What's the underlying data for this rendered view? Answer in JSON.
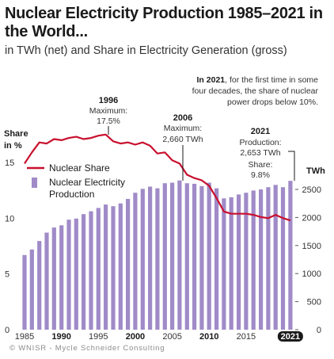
{
  "header": {
    "title": "Nuclear Electricity Production 1985–2021 in the World...",
    "subtitle": "in TWh (net) and Share in Electricity Generation (gross)"
  },
  "footer": {
    "credit": "© WNISR - Mycle Schneider Consulting"
  },
  "colors": {
    "bar": "#a08bc8",
    "line": "#c8102e",
    "text": "#1a1a1a",
    "axis": "#555555",
    "tickBg": "#1a1a1a"
  },
  "chart_data": {
    "type": "bar",
    "title": "Nuclear Electricity Production 1985–2021 in the World...",
    "subtitle": "in TWh (net) and Share in Electricity Generation (gross)",
    "x": [
      1985,
      1986,
      1987,
      1988,
      1989,
      1990,
      1991,
      1992,
      1993,
      1994,
      1995,
      1996,
      1997,
      1998,
      1999,
      2000,
      2001,
      2002,
      2003,
      2004,
      2005,
      2006,
      2007,
      2008,
      2009,
      2010,
      2011,
      2012,
      2013,
      2014,
      2015,
      2016,
      2017,
      2018,
      2019,
      2020,
      2021
    ],
    "xticks": {
      "labels": [
        "1985",
        "1990",
        "1995",
        "2000",
        "2005",
        "2010",
        "2015",
        "2021"
      ],
      "values": [
        1985,
        1990,
        1995,
        2000,
        2005,
        2010,
        2015,
        2021
      ],
      "emphasized": [
        "1990",
        "2000",
        "2010",
        "2021"
      ]
    },
    "series": [
      {
        "name": "Nuclear Electricity Production",
        "type": "bar",
        "axis": "right",
        "values": [
          1330,
          1430,
          1580,
          1730,
          1820,
          1860,
          1960,
          1980,
          2060,
          2110,
          2170,
          2230,
          2200,
          2250,
          2330,
          2440,
          2510,
          2550,
          2520,
          2610,
          2620,
          2660,
          2610,
          2600,
          2560,
          2620,
          2520,
          2340,
          2360,
          2410,
          2440,
          2480,
          2500,
          2540,
          2580,
          2540,
          2653
        ]
      },
      {
        "name": "Nuclear Share",
        "type": "line",
        "axis": "left",
        "values": [
          14.9,
          15.9,
          16.8,
          16.7,
          17.1,
          17.0,
          17.2,
          17.3,
          17.1,
          17.2,
          17.4,
          17.5,
          16.9,
          16.7,
          16.8,
          16.6,
          16.8,
          16.5,
          15.8,
          15.9,
          15.2,
          14.9,
          13.9,
          13.6,
          13.4,
          12.9,
          11.8,
          10.6,
          10.4,
          10.4,
          10.4,
          10.3,
          10.1,
          10.0,
          10.3,
          10.0,
          9.8
        ]
      }
    ],
    "axes": {
      "left": {
        "label": "Share in %",
        "ticks": [
          "0",
          "5",
          "10",
          "15"
        ],
        "values": [
          0,
          5,
          10,
          15
        ],
        "ylim": [
          0,
          15.5
        ]
      },
      "right": {
        "label": "TWh",
        "ticks": [
          "0",
          "500",
          "1000",
          "1500",
          "2000",
          "2500"
        ],
        "values": [
          0,
          500,
          1000,
          1500,
          2000,
          2500
        ],
        "ylim": [
          0,
          2800
        ]
      }
    },
    "legend": {
      "placement": "upper-left"
    },
    "annotations": {
      "a1996": {
        "year": "1996",
        "label": "Maximum:",
        "value": "17.5%"
      },
      "a2006": {
        "year": "2006",
        "label": "Maximum:",
        "value": "2,660 TWh"
      },
      "a2021": {
        "year": "2021",
        "l1": "Production:",
        "l2": "2,653 TWh",
        "l3": "Share:",
        "l4": "9.8%"
      },
      "note": {
        "lead": "In 2021",
        "rest": ", for the first time in some",
        "line2": "four decades, the share of nuclear",
        "line3": "power drops below 10%."
      }
    }
  }
}
